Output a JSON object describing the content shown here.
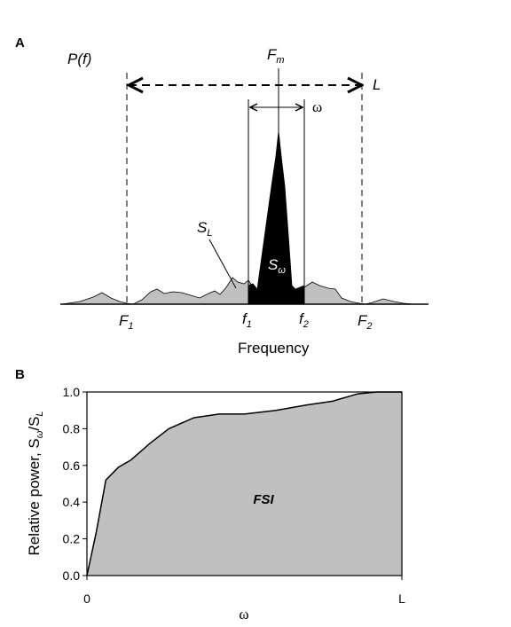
{
  "panel_a": {
    "letter": "A",
    "py_label": "P(f)",
    "fm_label": "F",
    "fm_sub": "m",
    "l_label": "L",
    "omega_label": "ω",
    "sl_label": "S",
    "sl_sub": "L",
    "sw_label": "S",
    "sw_sub": "ω",
    "f1_upper": "F",
    "f1_upper_sub": "1",
    "f2_upper": "F",
    "f2_upper_sub": "2",
    "f1_lower": "f",
    "f1_lower_sub": "1",
    "f2_lower": "f",
    "f2_lower_sub": "2",
    "xlabel": "Frequency",
    "colors": {
      "peak": "#000000",
      "background_area": "#c0c0c0"
    }
  },
  "panel_b": {
    "letter": "B",
    "ylabel_main": "Relative power, S",
    "ylabel_sub1": "ω",
    "ylabel_slash": "/S",
    "ylabel_sub2": "L",
    "xlabel": "ω",
    "area_label": "FSI",
    "colors": {
      "fill": "#c0c0c0"
    }
  },
  "chart_data": {
    "type": "area",
    "x_ticks": [
      "0",
      "L"
    ],
    "y_ticks": [
      "0.0",
      "0.2",
      "0.4",
      "0.6",
      "0.8",
      "1.0"
    ],
    "ylim": [
      0,
      1.0
    ],
    "xlim": [
      0,
      1.0
    ],
    "grid": false,
    "series": [
      {
        "x": [
          0,
          0.03,
          0.06,
          0.1,
          0.14,
          0.2,
          0.26,
          0.34,
          0.42,
          0.5,
          0.6,
          0.7,
          0.78,
          0.86,
          0.92,
          1.0
        ],
        "values": [
          0.0,
          0.24,
          0.52,
          0.59,
          0.63,
          0.72,
          0.8,
          0.86,
          0.88,
          0.88,
          0.9,
          0.93,
          0.95,
          0.99,
          1.0,
          1.0
        ]
      }
    ]
  }
}
